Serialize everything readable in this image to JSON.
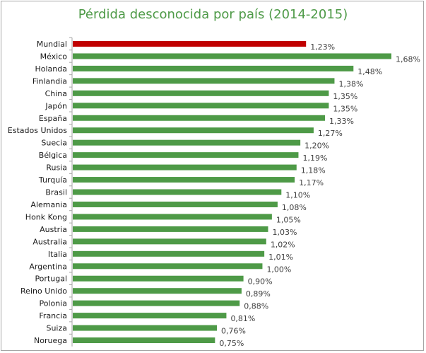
{
  "chart_data": {
    "type": "bar",
    "orientation": "horizontal",
    "title": "Pérdida desconocida por país (2014-2015)",
    "categories": [
      "Mundial",
      "México",
      "Holanda",
      "Finlandia",
      "China",
      "Japón",
      "España",
      "Estados Unidos",
      "Suecia",
      "Bélgica",
      "Rusia",
      "Turquía",
      "Brasil",
      "Alemania",
      "Honk Kong",
      "Austria",
      "Australia",
      "Italia",
      "Argentina",
      "Portugal",
      "Reino Unido",
      "Polonia",
      "Francia",
      "Suiza",
      "Noruega"
    ],
    "values": [
      1.23,
      1.68,
      1.48,
      1.38,
      1.35,
      1.35,
      1.33,
      1.27,
      1.2,
      1.19,
      1.18,
      1.17,
      1.1,
      1.08,
      1.05,
      1.03,
      1.02,
      1.01,
      1.0,
      0.9,
      0.89,
      0.88,
      0.81,
      0.76,
      0.75
    ],
    "value_labels": [
      "1,23%",
      "1,68%",
      "1,48%",
      "1,38%",
      "1,35%",
      "1,35%",
      "1,33%",
      "1,27%",
      "1,20%",
      "1,19%",
      "1,18%",
      "1,17%",
      "1,10%",
      "1,08%",
      "1,05%",
      "1,03%",
      "1,02%",
      "1,01%",
      "1,00%",
      "0,90%",
      "0,89%",
      "0,88%",
      "0,81%",
      "0,76%",
      "0,75%"
    ],
    "colors": {
      "highlight": "#c00000",
      "bar": "#4e9a47",
      "title": "#4e9a47",
      "axis": "#a6a6a6"
    },
    "highlight_category": "Mundial",
    "xlim": [
      0,
      1.68
    ],
    "grid": false,
    "legend": "none"
  }
}
